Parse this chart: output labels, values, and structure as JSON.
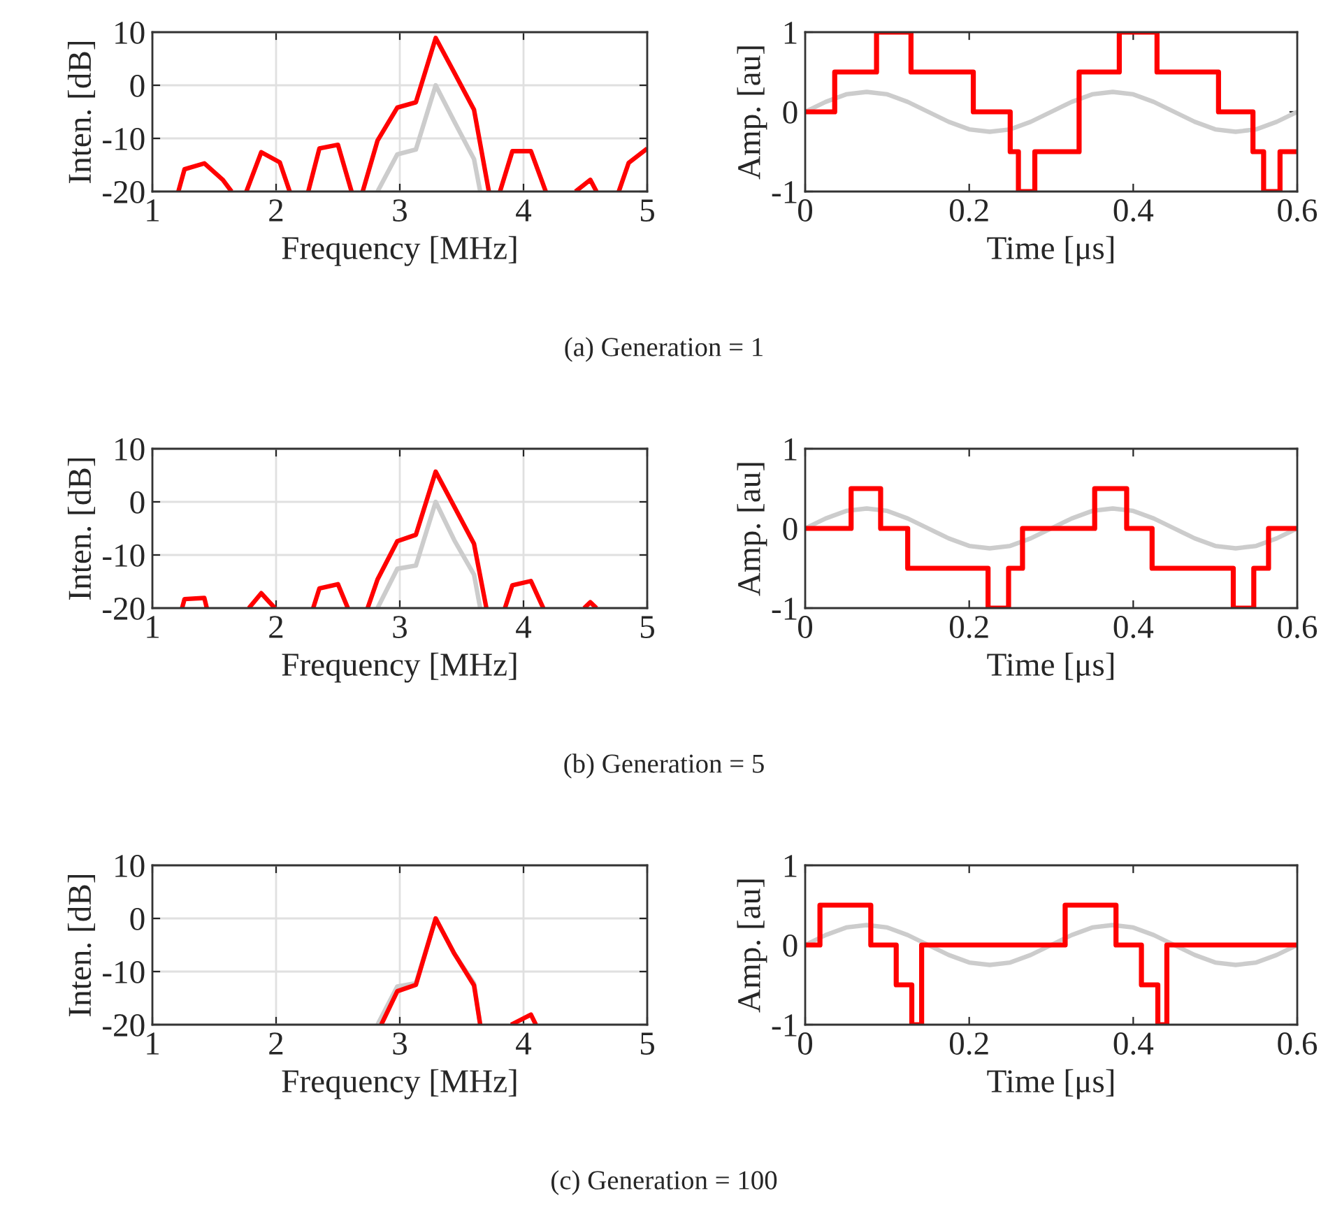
{
  "chart_data": [
    {
      "type": "line",
      "xlabel": "Frequency [MHz]",
      "ylabel": "Inten. [dB]",
      "xlim": [
        1,
        5
      ],
      "ylim": [
        -20,
        10
      ],
      "xticks": [
        1,
        2,
        3,
        4,
        5
      ],
      "yticks": [
        -20,
        -10,
        0,
        10
      ],
      "grid": true,
      "annotations": [
        "(a) Generation = 1"
      ],
      "series": [
        {
          "type": "line",
          "color": "#cccccc",
          "x": [
            2.82,
            2.98,
            3.13,
            3.29,
            3.44,
            3.6,
            3.65
          ],
          "values": [
            -20,
            -13,
            -12.1,
            0,
            -6.8,
            -13.9,
            -20
          ]
        },
        {
          "type": "line",
          "color": "#ff0000",
          "x": [
            1.21,
            1.26,
            1.42,
            1.57,
            1.64,
            1.7,
            1.76,
            1.88,
            2.03,
            2.11,
            2.18,
            2.26,
            2.35,
            2.5,
            2.61,
            2.65,
            2.7,
            2.82,
            2.98,
            3.13,
            3.29,
            3.44,
            3.6,
            3.72,
            3.76,
            3.81,
            3.91,
            4.06,
            4.18,
            4.3,
            4.42,
            4.54,
            4.59,
            4.68,
            4.77,
            4.85,
            5.0
          ],
          "values": [
            -20,
            -15.8,
            -14.7,
            -17.8,
            -20,
            null,
            -20,
            -12.6,
            -14.5,
            -20,
            null,
            -20,
            -11.9,
            -11.2,
            -20,
            null,
            -20,
            -10.4,
            -4.2,
            -3.2,
            8.9,
            2.4,
            -4.6,
            -20,
            null,
            -20,
            -12.4,
            -12.4,
            -20,
            null,
            -20,
            -17.8,
            -20,
            null,
            -20,
            -14.6,
            -11.9
          ]
        }
      ]
    },
    {
      "type": "line",
      "xlabel": "Time [μs]",
      "ylabel": "Amp. [au]",
      "xlim": [
        0,
        0.6
      ],
      "ylim": [
        -1,
        1
      ],
      "xticks": [
        0,
        0.2,
        0.4,
        0.6
      ],
      "yticks": [
        -1,
        0,
        1
      ],
      "series": [
        {
          "type": "line",
          "color": "#cccccc",
          "x": [
            0,
            0.025,
            0.05,
            0.075,
            0.1,
            0.125,
            0.15,
            0.175,
            0.2,
            0.225,
            0.25,
            0.275,
            0.3,
            0.325,
            0.35,
            0.375,
            0.4,
            0.425,
            0.45,
            0.475,
            0.5,
            0.525,
            0.55,
            0.575,
            0.6
          ],
          "values": [
            0,
            0.125,
            0.22,
            0.25,
            0.22,
            0.125,
            0,
            -0.125,
            -0.22,
            -0.25,
            -0.22,
            -0.125,
            0,
            0.125,
            0.22,
            0.25,
            0.22,
            0.125,
            0,
            -0.125,
            -0.22,
            -0.25,
            -0.22,
            -0.125,
            0
          ]
        },
        {
          "type": "step",
          "color": "#ff0000",
          "x": [
            0,
            0.036,
            0.087,
            0.129,
            0.205,
            0.25,
            0.26,
            0.28,
            0.334,
            0.383,
            0.429,
            0.504,
            0.546,
            0.559,
            0.579,
            0.6
          ],
          "values": [
            0,
            0.5,
            1,
            0.5,
            0,
            -0.5,
            -1,
            -0.5,
            0.5,
            1,
            0.5,
            0,
            -0.5,
            -1,
            -0.5,
            -0.5
          ]
        }
      ]
    },
    {
      "type": "line",
      "xlabel": "Frequency [MHz]",
      "ylabel": "Inten. [dB]",
      "xlim": [
        1,
        5
      ],
      "ylim": [
        -20,
        10
      ],
      "xticks": [
        1,
        2,
        3,
        4,
        5
      ],
      "yticks": [
        -20,
        -10,
        0,
        10
      ],
      "grid": true,
      "annotations": [
        "(b) Generation = 5"
      ],
      "series": [
        {
          "type": "line",
          "color": "#cccccc",
          "x": [
            2.82,
            2.98,
            3.13,
            3.29,
            3.44,
            3.6,
            3.65
          ],
          "values": [
            -20,
            -12.6,
            -12,
            0,
            -7.2,
            -13.7,
            -20
          ]
        },
        {
          "type": "line",
          "color": "#ff0000",
          "x": [
            1.24,
            1.26,
            1.42,
            1.44,
            1.6,
            1.78,
            1.88,
            1.99,
            2.1,
            2.3,
            2.35,
            2.5,
            2.58,
            2.66,
            2.74,
            2.82,
            2.98,
            3.13,
            3.29,
            3.44,
            3.6,
            3.7,
            3.78,
            3.85,
            3.91,
            4.06,
            4.16,
            4.3,
            4.49,
            4.54,
            4.59
          ],
          "values": [
            -20,
            -18.3,
            -18.1,
            -20,
            null,
            -20,
            -17.2,
            -20,
            null,
            -20,
            -16.3,
            -15.5,
            -20,
            null,
            -20,
            -14.6,
            -7.4,
            -6.2,
            5.7,
            -0.9,
            -7.9,
            -20,
            null,
            -20,
            -15.7,
            -14.9,
            -20,
            null,
            -20,
            -18.9,
            -20
          ]
        }
      ]
    },
    {
      "type": "line",
      "xlabel": "Time [μs]",
      "ylabel": "Amp. [au]",
      "xlim": [
        0,
        0.6
      ],
      "ylim": [
        -1,
        1
      ],
      "xticks": [
        0,
        0.2,
        0.4,
        0.6
      ],
      "yticks": [
        -1,
        0,
        1
      ],
      "series": [
        {
          "type": "line",
          "color": "#cccccc",
          "x": [
            0,
            0.025,
            0.05,
            0.075,
            0.1,
            0.125,
            0.15,
            0.175,
            0.2,
            0.225,
            0.25,
            0.275,
            0.3,
            0.325,
            0.35,
            0.375,
            0.4,
            0.425,
            0.45,
            0.475,
            0.5,
            0.525,
            0.55,
            0.575,
            0.6
          ],
          "values": [
            0,
            0.125,
            0.22,
            0.25,
            0.22,
            0.125,
            0,
            -0.125,
            -0.22,
            -0.25,
            -0.22,
            -0.125,
            0,
            0.125,
            0.22,
            0.25,
            0.22,
            0.125,
            0,
            -0.125,
            -0.22,
            -0.25,
            -0.22,
            -0.125,
            0
          ]
        },
        {
          "type": "step",
          "color": "#ff0000",
          "x": [
            0,
            0.056,
            0.092,
            0.125,
            0.223,
            0.248,
            0.265,
            0.353,
            0.392,
            0.423,
            0.522,
            0.547,
            0.565,
            0.6
          ],
          "values": [
            0,
            0.5,
            0,
            -0.5,
            -1,
            -0.5,
            0,
            0.5,
            0,
            -0.5,
            -1,
            -0.5,
            0,
            0
          ]
        }
      ]
    },
    {
      "type": "line",
      "xlabel": "Frequency [MHz]",
      "ylabel": "Inten. [dB]",
      "xlim": [
        1,
        5
      ],
      "ylim": [
        -20,
        10
      ],
      "xticks": [
        1,
        2,
        3,
        4,
        5
      ],
      "yticks": [
        -20,
        -10,
        0,
        10
      ],
      "grid": true,
      "annotations": [
        "(c) Generation = 100"
      ],
      "series": [
        {
          "type": "line",
          "color": "#cccccc",
          "x": [
            2.82,
            2.98,
            3.13,
            3.29,
            3.44,
            3.6,
            3.65
          ],
          "values": [
            -20,
            -12.8,
            -12.2,
            0,
            -6.6,
            -12.2,
            -20
          ]
        },
        {
          "type": "line",
          "color": "#ff0000",
          "x": [
            2.85,
            2.98,
            3.13,
            3.29,
            3.44,
            3.6,
            3.65,
            3.8,
            3.9,
            4.06,
            4.1
          ],
          "values": [
            -20,
            -13.7,
            -12.5,
            0,
            -6.6,
            -12.6,
            -20,
            null,
            -20,
            -18.1,
            -20
          ]
        }
      ]
    },
    {
      "type": "line",
      "xlabel": "Time [μs]",
      "ylabel": "Amp. [au]",
      "xlim": [
        0,
        0.6
      ],
      "ylim": [
        -1,
        1
      ],
      "xticks": [
        0,
        0.2,
        0.4,
        0.6
      ],
      "yticks": [
        -1,
        0,
        1
      ],
      "series": [
        {
          "type": "line",
          "color": "#cccccc",
          "x": [
            0,
            0.025,
            0.05,
            0.075,
            0.1,
            0.125,
            0.15,
            0.175,
            0.2,
            0.225,
            0.25,
            0.275,
            0.3,
            0.325,
            0.35,
            0.375,
            0.4,
            0.425,
            0.45,
            0.475,
            0.5,
            0.525,
            0.55,
            0.575,
            0.6
          ],
          "values": [
            0,
            0.125,
            0.22,
            0.25,
            0.22,
            0.125,
            0,
            -0.125,
            -0.22,
            -0.25,
            -0.22,
            -0.125,
            0,
            0.125,
            0.22,
            0.25,
            0.22,
            0.125,
            0,
            -0.125,
            -0.22,
            -0.25,
            -0.22,
            -0.125,
            0
          ]
        },
        {
          "type": "step",
          "color": "#ff0000",
          "x": [
            0,
            0.018,
            0.08,
            0.111,
            0.13,
            0.142,
            0.317,
            0.379,
            0.41,
            0.43,
            0.441,
            0.6
          ],
          "values": [
            0,
            0.5,
            0,
            -0.5,
            -1,
            0,
            0.5,
            0,
            -0.5,
            -1,
            0,
            0
          ]
        }
      ]
    }
  ]
}
